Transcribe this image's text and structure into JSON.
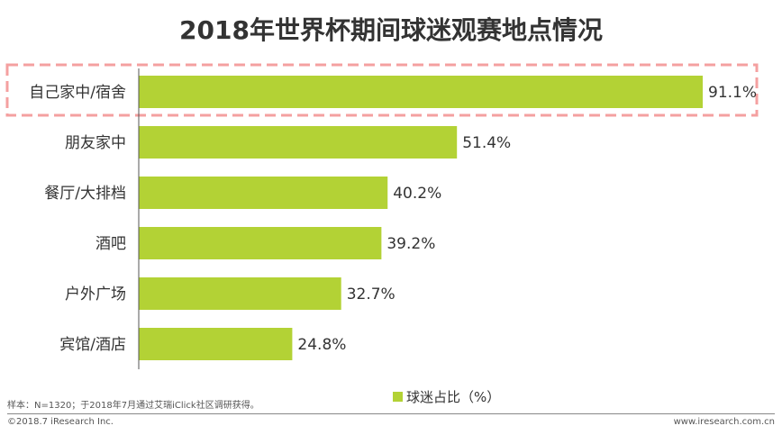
{
  "chart_data": {
    "type": "bar",
    "orientation": "horizontal",
    "title": "2018年世界杯期间球迷观赛地点情况",
    "categories": [
      "自己家中/宿舍",
      "朋友家中",
      "餐厅/大排档",
      "酒吧",
      "户外广场",
      "宾馆/酒店"
    ],
    "series": [
      {
        "name": "球迷占比（%）",
        "values": [
          91.1,
          51.4,
          40.2,
          39.2,
          32.7,
          24.8
        ]
      }
    ],
    "value_labels": [
      "91.1%",
      "51.4%",
      "40.2%",
      "39.2%",
      "32.7%",
      "24.8%"
    ],
    "xlim": [
      0,
      100
    ],
    "grid": false,
    "legend": "bottom",
    "bar_color": "#b3d235",
    "highlight_color": "#f4a0a0",
    "highlight_category": "自己家中/宿舍"
  },
  "footer": {
    "note": "样本：N=1320；于2018年7月通过艾瑞iClick社区调研获得。",
    "copyright": "©2018.7 iResearch Inc.",
    "website": "www.iresearch.com.cn"
  }
}
